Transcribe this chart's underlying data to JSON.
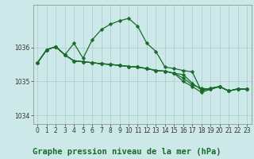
{
  "title": "Graphe pression niveau de la mer (hPa)",
  "bg_color": "#cce8e8",
  "grid_color": "#aacccc",
  "line_color": "#1a6b2a",
  "markersize": 2.5,
  "linewidth": 0.9,
  "ylim": [
    1033.75,
    1037.25
  ],
  "xlim": [
    -0.5,
    23.5
  ],
  "yticks": [
    1034,
    1035,
    1036
  ],
  "xticks": [
    0,
    1,
    2,
    3,
    4,
    5,
    6,
    7,
    8,
    9,
    10,
    11,
    12,
    13,
    14,
    15,
    16,
    17,
    18,
    19,
    20,
    21,
    22,
    23
  ],
  "tick_fontsize": 5.5,
  "title_fontsize": 7.5,
  "series1": [
    1035.55,
    1035.93,
    1036.02,
    1035.78,
    1036.12,
    1035.68,
    1036.22,
    1036.52,
    1036.68,
    1036.78,
    1036.85,
    1036.62,
    1036.12,
    1035.88,
    1035.42,
    1035.38,
    1035.32,
    1035.28,
    1034.72,
    1034.8,
    1034.85,
    1034.72,
    1034.78,
    1034.77
  ],
  "series2": [
    1035.55,
    1035.93,
    1036.02,
    1035.78,
    1035.6,
    1035.58,
    1035.55,
    1035.52,
    1035.5,
    1035.47,
    1035.44,
    1035.42,
    1035.38,
    1035.32,
    1035.3,
    1035.24,
    1035.2,
    1034.95,
    1034.75,
    1034.8,
    1034.85,
    1034.72,
    1034.78,
    1034.77
  ],
  "series3": [
    1035.55,
    1035.93,
    1036.02,
    1035.78,
    1035.6,
    1035.58,
    1035.55,
    1035.52,
    1035.5,
    1035.47,
    1035.44,
    1035.42,
    1035.38,
    1035.32,
    1035.3,
    1035.24,
    1035.1,
    1034.9,
    1034.8,
    1034.77,
    1034.85,
    1034.72,
    1034.78,
    1034.77
  ],
  "series4": [
    1035.55,
    1035.93,
    1036.02,
    1035.78,
    1035.6,
    1035.58,
    1035.55,
    1035.52,
    1035.5,
    1035.47,
    1035.44,
    1035.42,
    1035.38,
    1035.32,
    1035.3,
    1035.24,
    1035.0,
    1034.85,
    1034.68,
    1034.77,
    1034.85,
    1034.72,
    1034.78,
    1034.77
  ]
}
